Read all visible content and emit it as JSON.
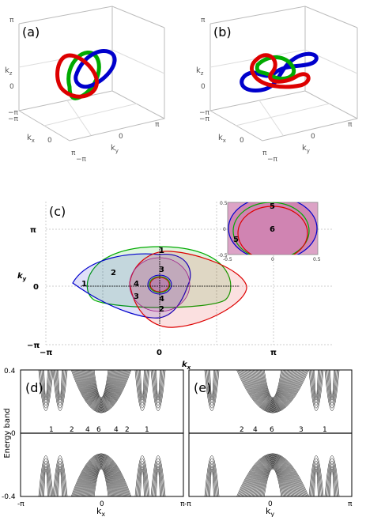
{
  "panels": {
    "a": {
      "label": "(a)",
      "axes": {
        "kz": "k",
        "kz_sub": "z",
        "kx": "k",
        "kx_sub": "x",
        "ky": "k",
        "ky_sub": "y"
      },
      "ticks": {
        "z_top": "π",
        "z_mid": "0",
        "z_bot": "−π",
        "x_left": "−π",
        "x_mid": "0",
        "x_right": "π",
        "y_left": "−π",
        "y_mid": "0",
        "y_right": "π"
      }
    },
    "b": {
      "label": "(b)",
      "axes": {
        "kz": "k",
        "kz_sub": "z",
        "kx": "k",
        "kx_sub": "x",
        "ky": "k",
        "ky_sub": "y"
      },
      "ticks": {
        "z_top": "π",
        "z_mid": "0",
        "z_bot": "−π",
        "x_left": "−π",
        "x_mid": "0",
        "x_right": "π",
        "y_left": "−π",
        "y_mid": "0",
        "y_right": "π"
      }
    },
    "c": {
      "label": "(c)",
      "ylabel": "k",
      "ylabel_sub": "y",
      "xlabel": "k",
      "xlabel_sub": "x",
      "yticks": [
        "π",
        "0",
        "−π"
      ],
      "xticks": [
        "−π",
        "0",
        "π"
      ],
      "region_numbers": [
        "1",
        "1",
        "2",
        "2",
        "3",
        "3",
        "4",
        "4"
      ],
      "inset": {
        "yticks": [
          "0.5",
          "0",
          "-0.5"
        ],
        "xticks": [
          "-0.5",
          "0",
          "0.5"
        ],
        "region_numbers": [
          "5",
          "6",
          "5"
        ]
      }
    },
    "d": {
      "label": "(d)",
      "ylabel": "Energy band",
      "xlabel": "k",
      "xlabel_sub": "x",
      "yticks": [
        "0.4",
        "0",
        "-0.4"
      ],
      "xticks": [
        "-π",
        "0",
        "π"
      ],
      "zero_numbers": [
        "1",
        "2",
        "4",
        "6",
        "4",
        "2",
        "1"
      ]
    },
    "e": {
      "label": "(e)",
      "xlabel": "k",
      "xlabel_sub": "y",
      "xticks": [
        "-π",
        "0",
        "π"
      ],
      "zero_numbers": [
        "2",
        "4",
        "6",
        "3",
        "1"
      ]
    }
  },
  "colors": {
    "red": "#dd0000",
    "green": "#00aa00",
    "blue": "#0000cc"
  }
}
